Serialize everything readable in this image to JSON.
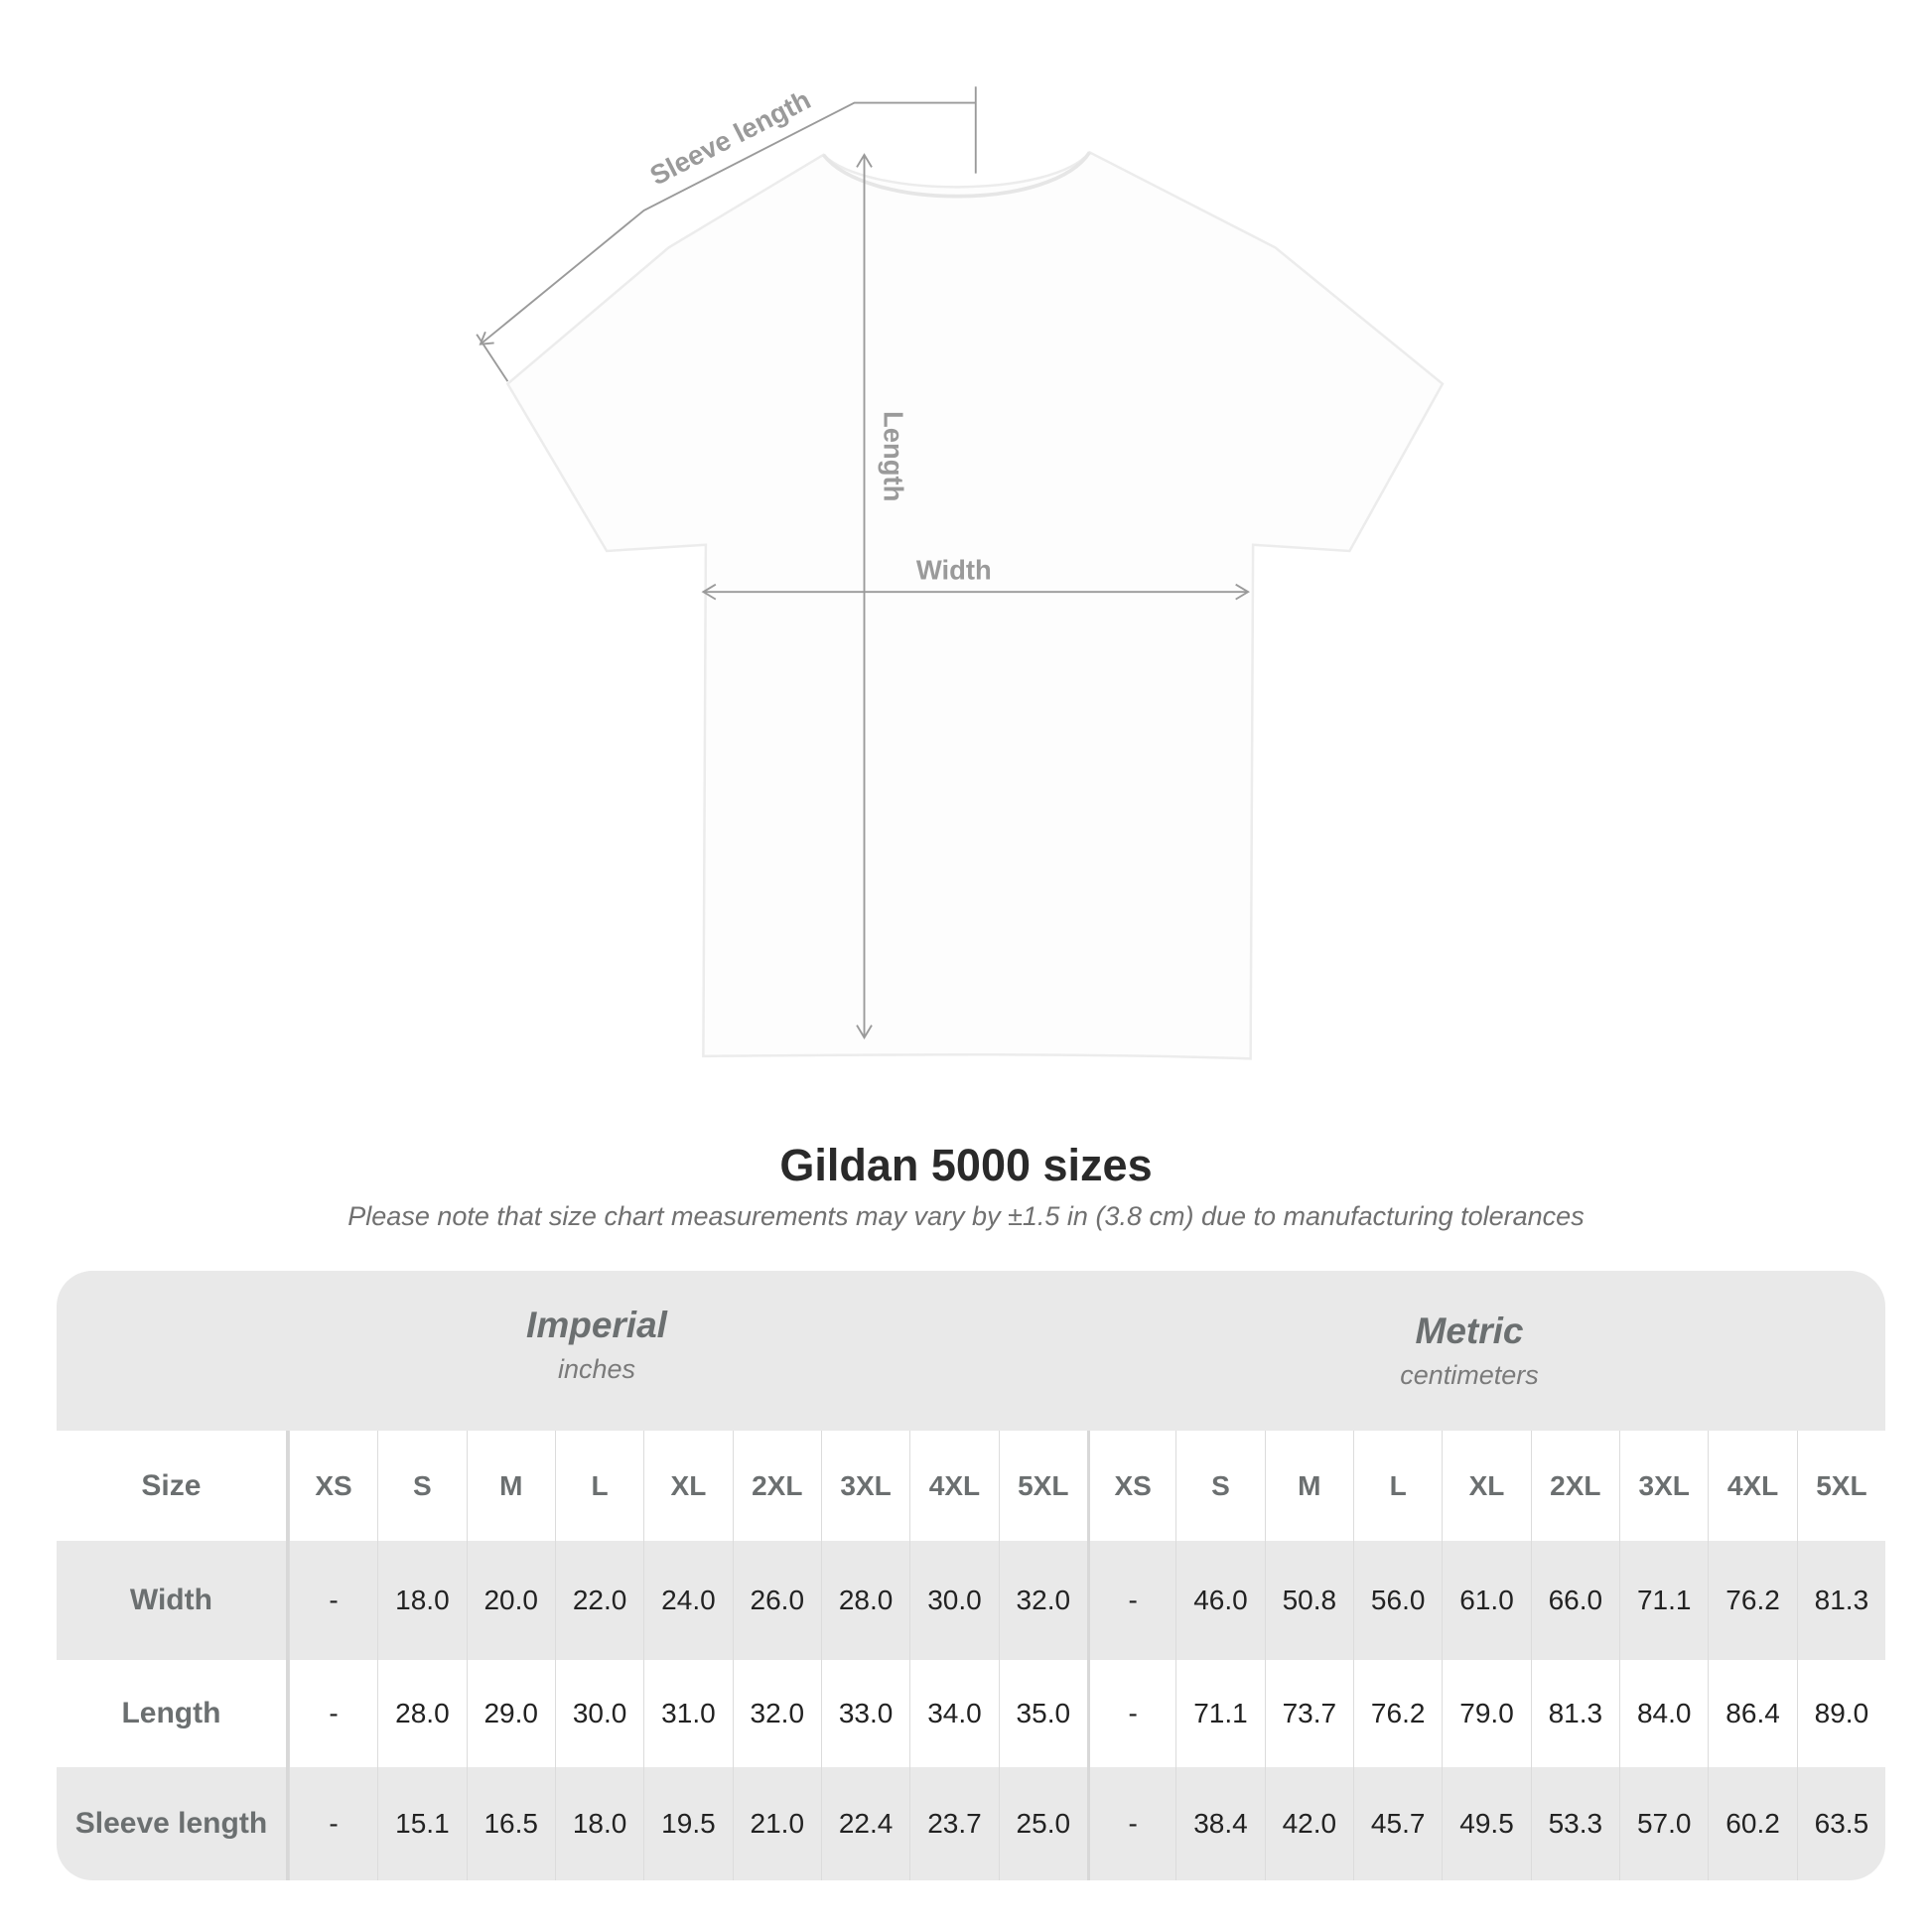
{
  "diagram": {
    "labels": {
      "sleeve": "Sleeve length",
      "length": "Length",
      "width": "Width"
    },
    "shirt_color": "#ffffff"
  },
  "title": "Gildan 5000 sizes",
  "note": "Please note that size chart measurements may vary by ±1.5 in (3.8 cm) due to manufacturing tolerances",
  "table": {
    "imperial": {
      "name": "Imperial",
      "unit": "inches"
    },
    "metric": {
      "name": "Metric",
      "unit": "centimeters"
    },
    "size_label": "Size",
    "sizes": [
      "XS",
      "S",
      "M",
      "L",
      "XL",
      "2XL",
      "3XL",
      "4XL",
      "5XL"
    ],
    "rows": [
      {
        "label": "Width",
        "imperial": [
          "-",
          "18.0",
          "20.0",
          "22.0",
          "24.0",
          "26.0",
          "28.0",
          "30.0",
          "32.0"
        ],
        "metric": [
          "-",
          "46.0",
          "50.8",
          "56.0",
          "61.0",
          "66.0",
          "71.1",
          "76.2",
          "81.3"
        ]
      },
      {
        "label": "Length",
        "imperial": [
          "-",
          "28.0",
          "29.0",
          "30.0",
          "31.0",
          "32.0",
          "33.0",
          "34.0",
          "35.0"
        ],
        "metric": [
          "-",
          "71.1",
          "73.7",
          "76.2",
          "79.0",
          "81.3",
          "84.0",
          "86.4",
          "89.0"
        ]
      },
      {
        "label": "Sleeve length",
        "imperial": [
          "-",
          "15.1",
          "16.5",
          "18.0",
          "19.5",
          "21.0",
          "22.4",
          "23.7",
          "25.0"
        ],
        "metric": [
          "-",
          "38.4",
          "42.0",
          "45.7",
          "49.5",
          "53.3",
          "57.0",
          "60.2",
          "63.5"
        ]
      }
    ]
  }
}
